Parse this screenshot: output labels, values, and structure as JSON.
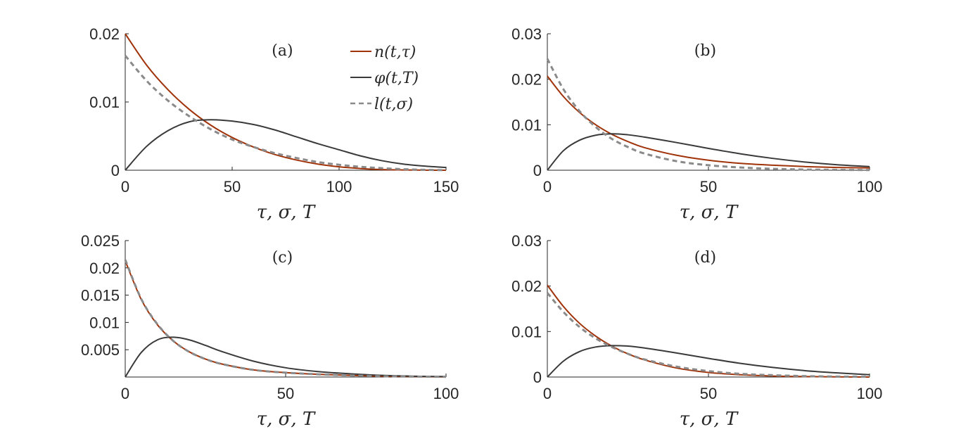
{
  "chart_data": [
    {
      "type": "line",
      "panel_label": "(a)",
      "xlabel": "τ, σ, T",
      "xlim": [
        0,
        150
      ],
      "ylim": [
        0,
        0.02
      ],
      "xticks": [
        0,
        50,
        100,
        150
      ],
      "xtick_labels": [
        "0",
        "50",
        "100",
        "150"
      ],
      "yticks": [
        0,
        0.01,
        0.02
      ],
      "ytick_labels": [
        "0",
        "0.01",
        "0.02"
      ],
      "legend_position": "top-right",
      "series": [
        {
          "name": "n(t,τ)",
          "color": "#a0330a",
          "style": "solid",
          "x": [
            0,
            10,
            20,
            30,
            40,
            50,
            60,
            70,
            80,
            90,
            100,
            110,
            120,
            130,
            140,
            150
          ],
          "y": [
            0.02,
            0.0154,
            0.0118,
            0.0089,
            0.0066,
            0.0048,
            0.0034,
            0.0023,
            0.0015,
            0.0009,
            0.0005,
            0.00025,
            0.0001,
            4e-05,
            1e-05,
            0.0
          ]
        },
        {
          "name": "φ(t,T)",
          "color": "#3a3a3a",
          "style": "solid",
          "x": [
            0,
            10,
            20,
            30,
            40,
            50,
            60,
            70,
            80,
            90,
            100,
            110,
            120,
            130,
            140,
            150
          ],
          "y": [
            0.0,
            0.0035,
            0.0058,
            0.0071,
            0.0074,
            0.0072,
            0.0067,
            0.0059,
            0.0049,
            0.0039,
            0.003,
            0.0021,
            0.0014,
            0.0009,
            0.0006,
            0.0004
          ]
        },
        {
          "name": "l(t,σ)",
          "color": "#8a8a8a",
          "style": "dashed",
          "x": [
            0,
            10,
            20,
            30,
            40,
            50,
            60,
            70,
            80,
            90,
            100,
            110,
            120,
            130,
            140,
            150
          ],
          "y": [
            0.0168,
            0.0131,
            0.0102,
            0.0079,
            0.006,
            0.0045,
            0.0034,
            0.0025,
            0.0018,
            0.0012,
            0.0008,
            0.0005,
            0.0003,
            0.00015,
            6e-05,
            0.0
          ]
        }
      ]
    },
    {
      "type": "line",
      "panel_label": "(b)",
      "xlabel": "τ, σ, T",
      "xlim": [
        0,
        100
      ],
      "ylim": [
        0,
        0.03
      ],
      "xticks": [
        0,
        50,
        100
      ],
      "xtick_labels": [
        "0",
        "50",
        "100"
      ],
      "yticks": [
        0,
        0.01,
        0.02,
        0.03
      ],
      "ytick_labels": [
        "0",
        "0.01",
        "0.02",
        "0.03"
      ],
      "series": [
        {
          "name": "n(t,τ)",
          "color": "#a0330a",
          "style": "solid",
          "x": [
            0,
            5,
            10,
            15,
            20,
            25,
            30,
            40,
            50,
            60,
            70,
            80,
            90,
            100
          ],
          "y": [
            0.0207,
            0.0162,
            0.0127,
            0.01,
            0.0079,
            0.0063,
            0.005,
            0.0033,
            0.0022,
            0.0015,
            0.0011,
            0.0008,
            0.0006,
            0.0005
          ]
        },
        {
          "name": "φ(t,T)",
          "color": "#3a3a3a",
          "style": "solid",
          "x": [
            0,
            5,
            10,
            15,
            20,
            25,
            30,
            40,
            50,
            60,
            70,
            80,
            90,
            100
          ],
          "y": [
            0.0,
            0.0043,
            0.0066,
            0.0077,
            0.008,
            0.0078,
            0.0073,
            0.0061,
            0.0048,
            0.0036,
            0.0026,
            0.0018,
            0.0012,
            0.0008
          ]
        },
        {
          "name": "l(t,σ)",
          "color": "#8a8a8a",
          "style": "dashed",
          "x": [
            0,
            5,
            10,
            15,
            20,
            25,
            30,
            40,
            50,
            60,
            70,
            80,
            90,
            100
          ],
          "y": [
            0.0245,
            0.0178,
            0.013,
            0.0095,
            0.0069,
            0.0051,
            0.0037,
            0.002,
            0.0011,
            0.0006,
            0.0003,
            0.00015,
            8e-05,
            4e-05
          ]
        }
      ]
    },
    {
      "type": "line",
      "panel_label": "(c)",
      "xlabel": "τ, σ, T",
      "xlim": [
        0,
        100
      ],
      "ylim": [
        0,
        0.025
      ],
      "xticks": [
        0,
        50,
        100
      ],
      "xtick_labels": [
        "0",
        "50",
        "100"
      ],
      "yticks": [
        0.005,
        0.01,
        0.015,
        0.02,
        0.025
      ],
      "ytick_labels": [
        "0.005",
        "0.01",
        "0.015",
        "0.02",
        "0.025"
      ],
      "series": [
        {
          "name": "n(t,τ)",
          "color": "#a0330a",
          "style": "solid",
          "x": [
            0,
            5,
            10,
            15,
            20,
            25,
            30,
            40,
            50,
            60,
            70,
            80,
            90,
            100
          ],
          "y": [
            0.0213,
            0.0142,
            0.0096,
            0.0066,
            0.0046,
            0.0033,
            0.0024,
            0.0013,
            0.0008,
            0.0005,
            0.0003,
            0.00015,
            8e-05,
            4e-05
          ]
        },
        {
          "name": "φ(t,T)",
          "color": "#3a3a3a",
          "style": "solid",
          "x": [
            0,
            5,
            10,
            15,
            20,
            25,
            30,
            40,
            50,
            60,
            70,
            80,
            90,
            100
          ],
          "y": [
            0.0,
            0.0045,
            0.0068,
            0.0073,
            0.0068,
            0.0058,
            0.0047,
            0.0029,
            0.0017,
            0.001,
            0.0006,
            0.0003,
            0.00015,
            8e-05
          ]
        },
        {
          "name": "l(t,σ)",
          "color": "#8a8a8a",
          "style": "dashed",
          "x": [
            0,
            5,
            10,
            15,
            20,
            25,
            30,
            40,
            50,
            60,
            70,
            80,
            90,
            100
          ],
          "y": [
            0.0215,
            0.0143,
            0.0097,
            0.0066,
            0.0046,
            0.0033,
            0.0024,
            0.0013,
            0.0008,
            0.0005,
            0.0003,
            0.00015,
            8e-05,
            4e-05
          ]
        }
      ]
    },
    {
      "type": "line",
      "panel_label": "(d)",
      "xlabel": "τ, σ, T",
      "xlim": [
        0,
        100
      ],
      "ylim": [
        0,
        0.03
      ],
      "xticks": [
        0,
        50,
        100
      ],
      "xtick_labels": [
        "0",
        "50",
        "100"
      ],
      "yticks": [
        0,
        0.01,
        0.02,
        0.03
      ],
      "ytick_labels": [
        "0",
        "0.01",
        "0.02",
        "0.03"
      ],
      "series": [
        {
          "name": "n(t,τ)",
          "color": "#a0330a",
          "style": "solid",
          "x": [
            0,
            5,
            10,
            15,
            20,
            25,
            30,
            40,
            50,
            60,
            70,
            80,
            90,
            100
          ],
          "y": [
            0.0202,
            0.0155,
            0.0118,
            0.009,
            0.0068,
            0.0051,
            0.0038,
            0.002,
            0.001,
            0.0005,
            0.00022,
            0.0001,
            4e-05,
            0.0
          ]
        },
        {
          "name": "φ(t,T)",
          "color": "#3a3a3a",
          "style": "solid",
          "x": [
            0,
            5,
            10,
            15,
            20,
            25,
            30,
            40,
            50,
            60,
            70,
            80,
            90,
            100
          ],
          "y": [
            0.0,
            0.0035,
            0.0056,
            0.0066,
            0.0069,
            0.0068,
            0.0064,
            0.0053,
            0.0041,
            0.003,
            0.0021,
            0.0014,
            0.0009,
            0.0005
          ]
        },
        {
          "name": "l(t,σ)",
          "color": "#8a8a8a",
          "style": "dashed",
          "x": [
            0,
            5,
            10,
            15,
            20,
            25,
            30,
            40,
            50,
            60,
            70,
            80,
            90,
            100
          ],
          "y": [
            0.0185,
            0.0143,
            0.011,
            0.0085,
            0.0066,
            0.0051,
            0.0039,
            0.0023,
            0.0013,
            0.0007,
            0.0004,
            0.0002,
            0.0001,
            5e-05
          ]
        }
      ]
    }
  ]
}
